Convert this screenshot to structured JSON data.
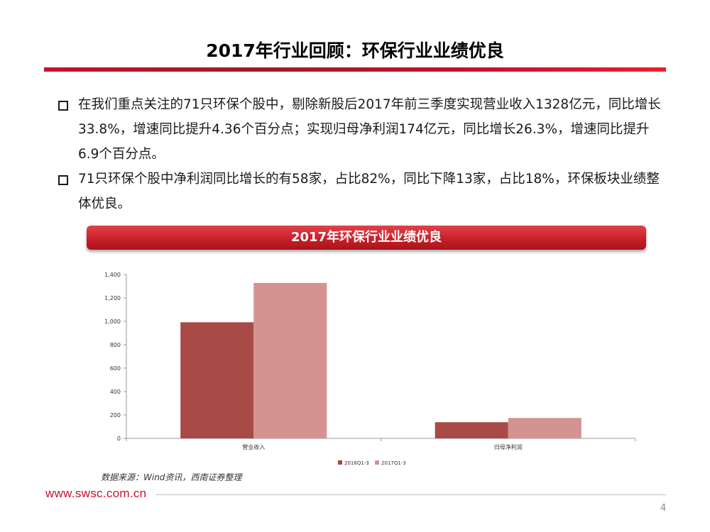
{
  "slide": {
    "title": "2017年行业回顾：环保行业业绩优良",
    "bullets": [
      "在我们重点关注的71只环保个股中，剔除新股后2017年前三季度实现营业收入1328亿元，同比增长33.8%，增速同比提升4.36个百分点；实现归母净利润174亿元，同比增长26.3%，增速同比提升6.9个百分点。",
      "71只环保个股中净利润同比增长的有58家，占比82%，同比下降13家，占比18%，环保板块业绩整体优良。"
    ],
    "chart_banner": "2017年环保行业业绩优良",
    "source": "数据来源：Wind资讯，西南证券整理",
    "website": "www.swsc.com.cn",
    "page_number": "4"
  },
  "colors": {
    "accent": "#c8102e",
    "series_2016": "#a84a45",
    "series_2017": "#d49391"
  },
  "chart_data": {
    "type": "bar",
    "title": "",
    "categories": [
      "营业收入",
      "归母净利润"
    ],
    "series": [
      {
        "name": "2016Q1-3",
        "values": [
          992,
          138
        ]
      },
      {
        "name": "2017Q1-3",
        "values": [
          1328,
          174
        ]
      }
    ],
    "ylim": [
      0,
      1400
    ],
    "yticks": [
      0,
      200,
      400,
      600,
      800,
      1000,
      1200,
      1400
    ],
    "ytick_labels": [
      "0",
      "200",
      "400",
      "600",
      "800",
      "1,000",
      "1,200",
      "1,400"
    ],
    "xlabel": "",
    "ylabel": "",
    "grid": false,
    "legend_position": "bottom"
  }
}
